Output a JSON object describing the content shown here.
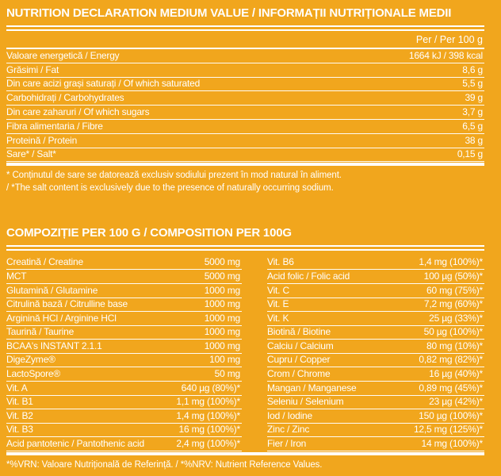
{
  "page": {
    "background_color": "#F1A61D",
    "text_color": "#FFFFFF"
  },
  "nutrition_declaration": {
    "title": "NUTRITION DECLARATION MEDIUM VALUE / INFORMAȚII NUTRIȚIONALE MEDII",
    "column_header": "Per / Per 100 g",
    "rows": [
      {
        "label": "Valoare energetică / Energy",
        "value": "1664 kJ / 398 kcal"
      },
      {
        "label": "Grăsimi / Fat",
        "value": "8,6 g"
      },
      {
        "label": "Din care acizi grași saturați / Of which saturated",
        "value": "5,5 g"
      },
      {
        "label": "Carbohidrați / Carbohydrates",
        "value": "39 g"
      },
      {
        "label": "Din care zaharuri / Of which sugars",
        "value": "3,7 g"
      },
      {
        "label": "Fibra alimentaria / Fibre",
        "value": "6,5 g"
      },
      {
        "label": "Proteină / Protein",
        "value": "38 g"
      },
      {
        "label": "Sare* / Salt*",
        "value": "0,15 g"
      }
    ],
    "footnote_ro": "* Conținutul de sare se datorează exclusiv sodiului prezent în mod natural în aliment.",
    "footnote_en": "/ *The salt content is exclusively due to the presence of naturally occurring sodium."
  },
  "composition": {
    "title": "COMPOZIȚIE PER 100 G / COMPOSITION PER 100G",
    "left_rows": [
      {
        "label": "Creatină / Creatine",
        "value": "5000 mg"
      },
      {
        "label": "MCT",
        "value": "5000 mg"
      },
      {
        "label": "Glutamină / Glutamine",
        "value": "1000 mg"
      },
      {
        "label": "Citrulină bază / Citrulline base",
        "value": "1000 mg"
      },
      {
        "label": "Arginină HCl / Arginine HCl",
        "value": "1000 mg"
      },
      {
        "label": "Taurină / Taurine",
        "value": "1000 mg"
      },
      {
        "label": "BCAA's INSTANT 2.1.1",
        "value": "1000 mg"
      },
      {
        "label": "DigeZyme®",
        "value": "100 mg"
      },
      {
        "label": "LactoSpore®",
        "value": "50 mg"
      },
      {
        "label": "Vit. A",
        "value": "640 µg (80%)*"
      },
      {
        "label": "Vit. B1",
        "value": "1,1 mg (100%)*"
      },
      {
        "label": "Vit. B2",
        "value": "1,4 mg (100%)*"
      },
      {
        "label": "Vit. B3",
        "value": "16 mg (100%)*"
      },
      {
        "label": "Acid pantotenic / Pantothenic acid",
        "value": "2,4 mg (100%)*"
      }
    ],
    "right_rows": [
      {
        "label": "Vit. B6",
        "value": "1,4 mg (100%)*"
      },
      {
        "label": "Acid folic / Folic acid",
        "value": "100 µg (50%)*"
      },
      {
        "label": "Vit. C",
        "value": "60 mg (75%)*"
      },
      {
        "label": "Vit. E",
        "value": "7,2 mg (60%)*"
      },
      {
        "label": "Vit. K",
        "value": "25 µg (33%)*"
      },
      {
        "label": "Biotină / Biotine",
        "value": "50 µg (100%)*"
      },
      {
        "label": "Calciu / Calcium",
        "value": "80 mg (10%)*"
      },
      {
        "label": "Cupru / Copper",
        "value": "0,82 mg (82%)*"
      },
      {
        "label": "Crom / Chrome",
        "value": "16 µg (40%)*"
      },
      {
        "label": "Mangan / Manganese",
        "value": "0,89 mg (45%)*"
      },
      {
        "label": "Seleniu / Selenium",
        "value": "23 µg (42%)*"
      },
      {
        "label": "Iod / Iodine",
        "value": "150 µg (100%)*"
      },
      {
        "label": "Zinc / Zinc",
        "value": "12,5 mg (125%)*"
      },
      {
        "label": "Fier / Iron",
        "value": "14 mg (100%)*"
      }
    ],
    "footnote": "*%VRN: Valoare Nutrițională de Referință. / *%NRV: Nutrient Reference Values."
  }
}
